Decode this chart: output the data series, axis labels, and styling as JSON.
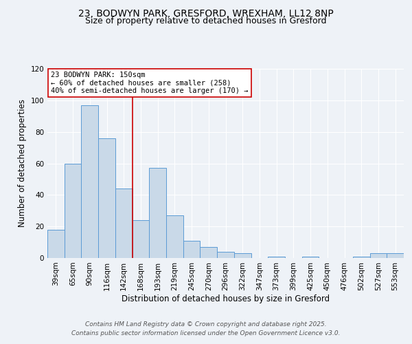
{
  "title_line1": "23, BODWYN PARK, GRESFORD, WREXHAM, LL12 8NP",
  "title_line2": "Size of property relative to detached houses in Gresford",
  "xlabel": "Distribution of detached houses by size in Gresford",
  "ylabel": "Number of detached properties",
  "categories": [
    "39sqm",
    "65sqm",
    "90sqm",
    "116sqm",
    "142sqm",
    "168sqm",
    "193sqm",
    "219sqm",
    "245sqm",
    "270sqm",
    "296sqm",
    "322sqm",
    "347sqm",
    "373sqm",
    "399sqm",
    "425sqm",
    "450sqm",
    "476sqm",
    "502sqm",
    "527sqm",
    "553sqm"
  ],
  "values": [
    18,
    60,
    97,
    76,
    44,
    24,
    57,
    27,
    11,
    7,
    4,
    3,
    0,
    1,
    0,
    1,
    0,
    0,
    1,
    3,
    3
  ],
  "bar_color": "#c9d9e8",
  "bar_edge_color": "#5b9bd5",
  "vline_x": 4.5,
  "vline_color": "#cc0000",
  "annotation_text": "23 BODWYN PARK: 150sqm\n← 60% of detached houses are smaller (258)\n40% of semi-detached houses are larger (170) →",
  "annotation_box_color": "#ffffff",
  "annotation_box_edge_color": "#cc0000",
  "ylim": [
    0,
    120
  ],
  "yticks": [
    0,
    20,
    40,
    60,
    80,
    100,
    120
  ],
  "background_color": "#eef2f7",
  "plot_bg_color": "#eef2f7",
  "footer_line1": "Contains HM Land Registry data © Crown copyright and database right 2025.",
  "footer_line2": "Contains public sector information licensed under the Open Government Licence v3.0.",
  "title_fontsize": 10,
  "subtitle_fontsize": 9,
  "axis_label_fontsize": 8.5,
  "tick_fontsize": 7.5,
  "annotation_fontsize": 7.5,
  "footer_fontsize": 6.5
}
